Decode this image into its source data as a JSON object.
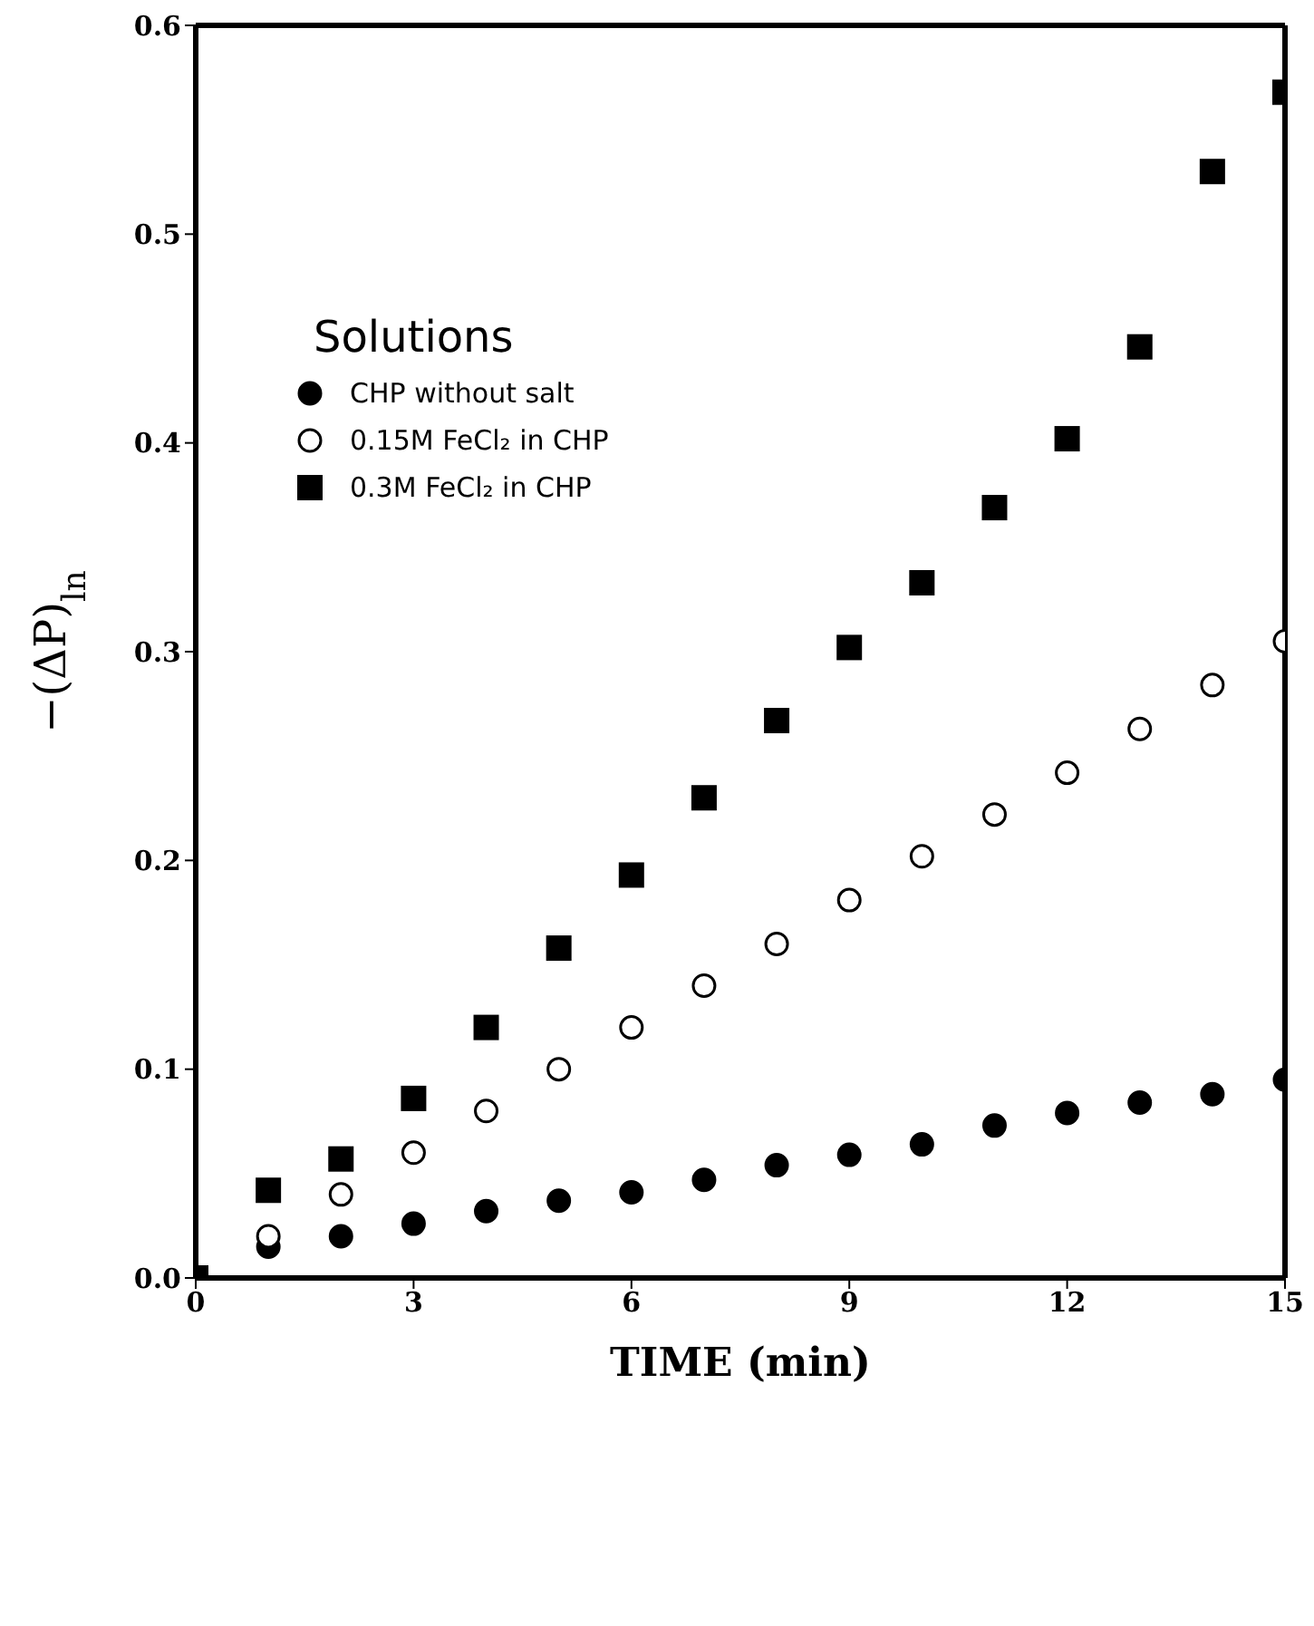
{
  "chart_data": {
    "type": "scatter",
    "xlabel": "TIME (min)",
    "ylabel": "−(ΔP)$_{ln}$",
    "legend_title": "Solutions",
    "legend": "top left",
    "grid": false,
    "x": [
      0,
      1,
      2,
      3,
      4,
      5,
      6,
      7,
      8,
      9,
      10,
      11,
      12,
      13,
      14,
      15
    ],
    "xlim": [
      0,
      15
    ],
    "xticks": [
      0,
      3,
      6,
      9,
      12,
      15
    ],
    "ylim": [
      0,
      0.6
    ],
    "yticks": [
      {
        "value": 0,
        "label": "0.0"
      },
      {
        "value": 0.1,
        "label": "0.1"
      },
      {
        "value": 0.2,
        "label": "0.2"
      },
      {
        "value": 0.3,
        "label": "0.3"
      },
      {
        "value": 0.4,
        "label": "0.4"
      },
      {
        "value": 0.5,
        "label": "0.5"
      },
      {
        "value": 0.6,
        "label": "0.6"
      }
    ],
    "series": [
      {
        "name": "CHP without salt",
        "color": "#000000",
        "marker": "circle",
        "values": [
          null,
          0.015,
          0.02,
          0.026,
          0.032,
          0.037,
          0.041,
          0.047,
          0.054,
          0.059,
          0.064,
          0.073,
          0.079,
          0.084,
          0.088,
          0.095
        ]
      },
      {
        "name": "0.15M FeCl₂ in CHP",
        "color": "#ffffff",
        "marker": "circle",
        "values": [
          null,
          0.02,
          0.04,
          0.06,
          0.08,
          0.1,
          0.12,
          0.14,
          0.16,
          0.181,
          0.202,
          0.222,
          0.242,
          0.263,
          0.284,
          0.305
        ]
      },
      {
        "name": "0.3M FeCl₂ in CHP",
        "color": "#000000",
        "marker": "square",
        "values": [
          0,
          0.042,
          0.057,
          0.086,
          0.12,
          0.158,
          0.193,
          0.23,
          0.267,
          0.302,
          0.333,
          0.369,
          0.402,
          0.446,
          0.53,
          0.568
        ]
      }
    ]
  }
}
